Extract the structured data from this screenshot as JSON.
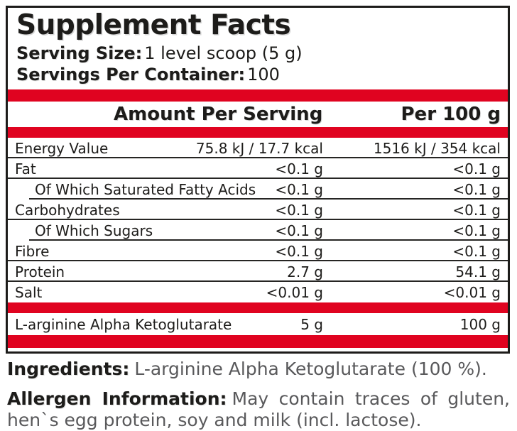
{
  "panel": {
    "title": "Supplement Facts",
    "serving_size": {
      "label": "Serving Size:",
      "value": "1 level scoop (5 g)"
    },
    "servings_per_container": {
      "label": "Servings Per Container:",
      "value": "100"
    },
    "header": {
      "amount_col": "Amount Per Serving",
      "per100_col": "Per 100 g"
    },
    "rows": [
      {
        "name": "Energy Value",
        "amount": "75.8 kJ / 17.7 kcal",
        "per100": "1516 kJ / 354 kcal",
        "indent": false
      },
      {
        "name": "Fat",
        "amount": "<0.1 g",
        "per100": "<0.1 g",
        "indent": false
      },
      {
        "name": "Of Which Saturated Fatty Acids",
        "amount": "<0.1 g",
        "per100": "<0.1 g",
        "indent": true
      },
      {
        "name": "Carbohydrates",
        "amount": "<0.1 g",
        "per100": "<0.1 g",
        "indent": false
      },
      {
        "name": "Of Which Sugars",
        "amount": "<0.1 g",
        "per100": "<0.1 g",
        "indent": true
      },
      {
        "name": "Fibre",
        "amount": "<0.1 g",
        "per100": "<0.1 g",
        "indent": false
      },
      {
        "name": "Protein",
        "amount": "2.7 g",
        "per100": "54.1 g",
        "indent": false
      },
      {
        "name": "Salt",
        "amount": "<0.01 g",
        "per100": "<0.01 g",
        "indent": false
      }
    ],
    "highlight_row": {
      "name": "L-arginine Alpha Ketoglutarate",
      "amount": "5 g",
      "per100": "100 g"
    }
  },
  "footer": {
    "ingredients": {
      "label": "Ingredients:",
      "text": "L-arginine Alpha Ketoglutarate (100 %)."
    },
    "allergen": {
      "label": "Allergen Information:",
      "line1": "May contain traces of gluten,",
      "line2": "hen`s egg protein, soy and milk (incl. lactose)."
    }
  },
  "colors": {
    "accent_red": "#e00320",
    "text_dark": "#1d1c1a",
    "text_gray": "#59595b",
    "background": "#ffffff"
  }
}
